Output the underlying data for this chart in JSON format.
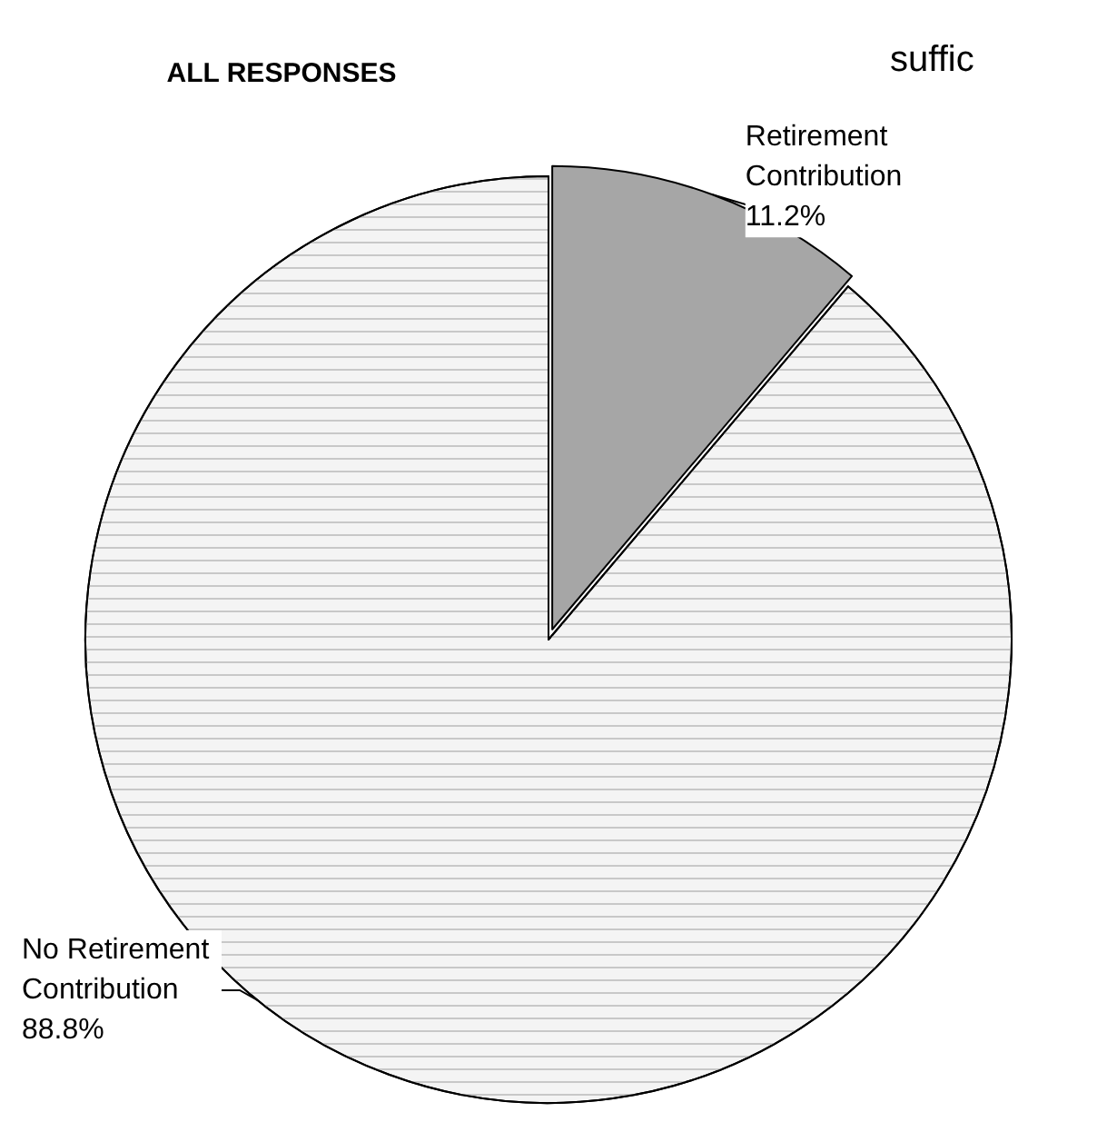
{
  "chart_data": {
    "type": "pie",
    "title": "ALL RESPONSES",
    "categories": [
      "Retirement Contribution",
      "No Retirement Contribution"
    ],
    "values": [
      11.2,
      88.8
    ],
    "colors": [
      "#a6a6a6",
      "#f4f4f4"
    ],
    "value_labels": [
      "11.2%",
      "88.8%"
    ],
    "legend": false,
    "annotations": [
      "suffic"
    ]
  }
}
